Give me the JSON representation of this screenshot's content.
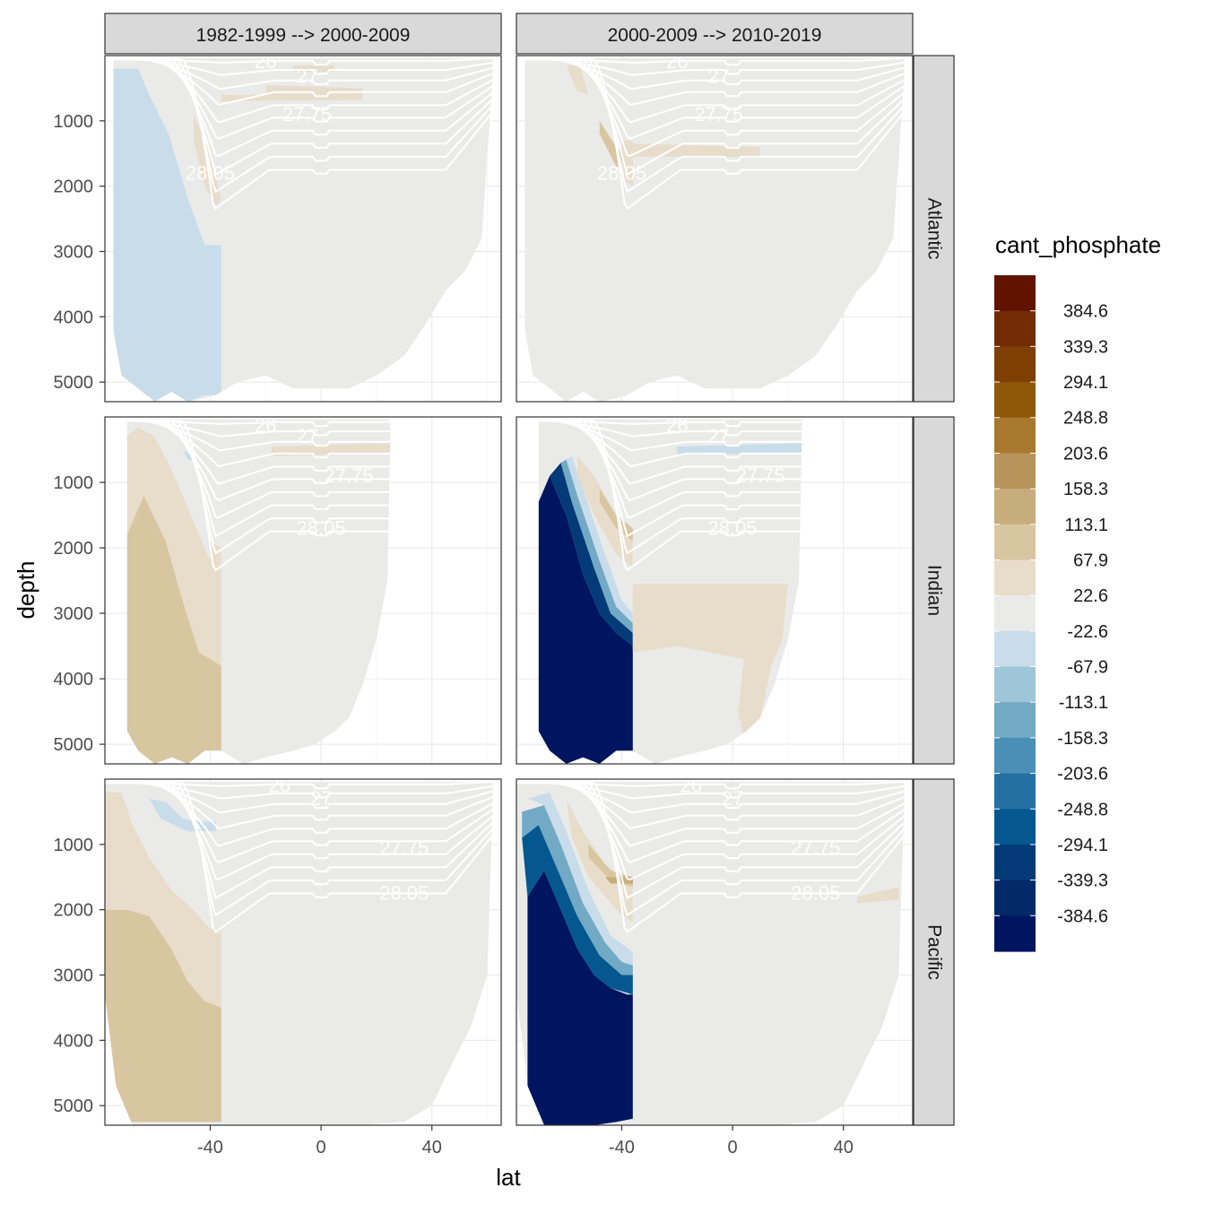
{
  "chart_data": {
    "type": "heatmap",
    "subtype": "faceted filled-contour ocean sections",
    "variable": "cant_phosphate",
    "xlabel": "lat",
    "ylabel": "depth",
    "x_ticks": [
      -40,
      0,
      40
    ],
    "y_ticks": [
      1000,
      2000,
      3000,
      4000,
      5000
    ],
    "xlim": [
      -78,
      65
    ],
    "ylim": [
      5300,
      0
    ],
    "y_reversed": true,
    "columns": [
      "1982-1999 --> 2000-2009",
      "2000-2009 --> 2010-2019"
    ],
    "rows": [
      "Atlantic",
      "Indian",
      "Pacific"
    ],
    "isopycnal_labels": [
      "26",
      "27",
      "27.75",
      "28.05"
    ],
    "legend": {
      "title": "cant_phosphate",
      "placement": "right",
      "breaks": [
        "384.6",
        "339.3",
        "294.1",
        "248.8",
        "203.6",
        "158.3",
        "113.1",
        "67.9",
        "22.6",
        "-22.6",
        "-67.9",
        "-113.1",
        "-158.3",
        "-203.6",
        "-248.8",
        "-294.1",
        "-339.3",
        "-384.6"
      ],
      "colors": [
        "#611300",
        "#722b05",
        "#7f3f04",
        "#8e5808",
        "#a7782e",
        "#b8945a",
        "#c6ad7b",
        "#d8c6a1",
        "#e8ddcb",
        "#eaebe9",
        "#c9dcea",
        "#9fc5d8",
        "#72a9c5",
        "#4a8fb6",
        "#2370a3",
        "#05578f",
        "#023b78",
        "#022a69",
        "#001560"
      ]
    },
    "panels": [
      {
        "row": "Atlantic",
        "col": "1982-1999 --> 2000-2009",
        "dominant": "-22.6 to 22.6",
        "south_of_35S": "-67.9 to -22.6",
        "north_of_35S": "-22.6 to 22.6",
        "features": "weak positive (22.6–67.9) band near 400–700 m and along 27.75–28.05 isopycnals"
      },
      {
        "row": "Atlantic",
        "col": "2000-2009 --> 2010-2019",
        "dominant": "-22.6 to 22.6",
        "south_of_35S": "-22.6 to 22.6",
        "north_of_35S": "-22.6 to 22.6",
        "features": "positive 67.9–158.3 tongue along 27.75–28.05 near 40S, 1000–2000 m"
      },
      {
        "row": "Indian",
        "col": "1982-1999 --> 2000-2009",
        "dominant": "-22.6 to 22.6",
        "south_of_35S": "67.9 to 113.1",
        "north_of_35S": "-22.6 to 22.6",
        "features": "positive 22.6–67.9 band near 500 m north of 35S"
      },
      {
        "row": "Indian",
        "col": "2000-2009 --> 2010-2019",
        "dominant": "-22.6 to 22.6",
        "south_of_35S": "< -384.6 at depth",
        "north_of_35S": "22.6 to 67.9 between 2500 and 4500 m",
        "features": "strong negative anomaly in deep Southern Ocean"
      },
      {
        "row": "Pacific",
        "col": "1982-1999 --> 2000-2009",
        "dominant": "-22.6 to 22.6",
        "south_of_35S": "67.9 to 113.1 below 2000 m",
        "north_of_35S": "-22.6 to 22.6",
        "features": "negative -67.9 to -22.6 near 60S, 500 m"
      },
      {
        "row": "Pacific",
        "col": "2000-2009 --> 2010-2019",
        "dominant": "-22.6 to 22.6",
        "south_of_35S": "< -384.6 below 2500 m",
        "north_of_35S": "-22.6 to 22.6",
        "features": "positive 113.1–158.3 along 27.75 near 40S; weak positive near 50N, 1800 m"
      }
    ]
  }
}
